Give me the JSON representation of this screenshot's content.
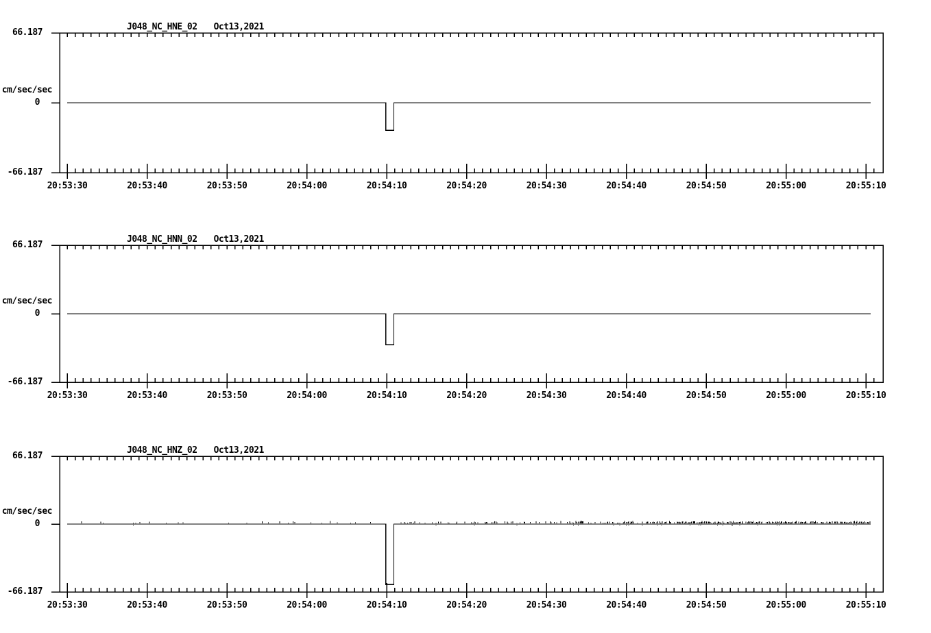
{
  "figure": {
    "background_color": "#ffffff",
    "foreground_color": "#000000",
    "date_label": "Oct13,2021",
    "unit_label": "cm/sec/sec"
  },
  "axis": {
    "y_max_label": "66.187",
    "y_zero_label": "0",
    "y_min_label": "-66.187",
    "x_tick_labels": [
      "20:53:30",
      "20:53:40",
      "20:53:50",
      "20:54:00",
      "20:54:10",
      "20:54:20",
      "20:54:30",
      "20:54:40",
      "20:54:50",
      "20:55:00",
      "20:55:10"
    ]
  },
  "panels": [
    {
      "title": "J048_NC_HNE_02"
    },
    {
      "title": "J048_NC_HNN_02"
    },
    {
      "title": "J048_NC_HNZ_02"
    }
  ],
  "chart_data": {
    "type": "line",
    "title": "",
    "xlabel": "",
    "ylabel": "cm/sec/sec",
    "ylim": [
      -66.187,
      66.187
    ],
    "y_tick_values": [
      66.187,
      0,
      -66.187
    ],
    "x_start_time": "20:53:30",
    "x_end_time": "20:55:10",
    "x_tick_labels": [
      "20:53:30",
      "20:53:40",
      "20:53:50",
      "20:54:00",
      "20:54:10",
      "20:54:20",
      "20:54:30",
      "20:54:40",
      "20:54:50",
      "20:55:00",
      "20:55:10"
    ],
    "minor_tick_interval_sec": 1,
    "major_tick_interval_sec": 10,
    "time_unit": "seconds after 20:53:30",
    "series": [
      {
        "name": "J048_NC_HNE_02",
        "date": "Oct13,2021",
        "points": [
          [
            0,
            0
          ],
          [
            39.9,
            0
          ],
          [
            39.9,
            -26
          ],
          [
            40.9,
            -26
          ],
          [
            40.9,
            0
          ],
          [
            100.6,
            0
          ]
        ],
        "noise_max_cm_s2": 0
      },
      {
        "name": "J048_NC_HNN_02",
        "date": "Oct13,2021",
        "points": [
          [
            0,
            0
          ],
          [
            39.9,
            0
          ],
          [
            39.9,
            -30
          ],
          [
            40.9,
            -30
          ],
          [
            40.9,
            0
          ],
          [
            100.6,
            0
          ]
        ],
        "noise_max_cm_s2": 0
      },
      {
        "name": "J048_NC_HNZ_02",
        "date": "Oct13,2021",
        "points": [
          [
            0,
            0
          ],
          [
            39.9,
            0
          ],
          [
            39.9,
            -59
          ],
          [
            40.9,
            -59
          ],
          [
            40.9,
            0
          ],
          [
            100.6,
            0
          ]
        ],
        "noise_max_cm_s2": 1.8,
        "noise_note": "sparse speckle left of pulse, denser baseline speckle right of pulse"
      }
    ]
  }
}
